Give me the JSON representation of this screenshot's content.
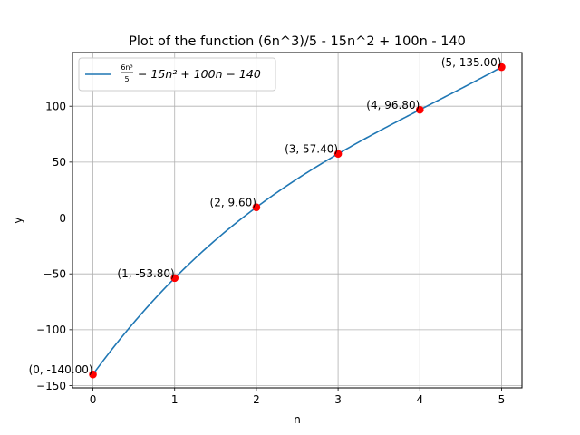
{
  "chart_data": {
    "type": "line",
    "title": "Plot of the function (6n^3)/5 - 15n^2 + 100n - 140",
    "xlabel": "n",
    "ylabel": "y",
    "xlim": [
      -0.25,
      5.25
    ],
    "ylim": [
      -152,
      148
    ],
    "xticks": [
      0,
      1,
      2,
      3,
      4,
      5
    ],
    "yticks": [
      -150,
      -100,
      -50,
      0,
      50,
      100
    ],
    "grid": true,
    "legend_position": "top-left",
    "function": {
      "a3": 1.2,
      "a2": -15,
      "a1": 100,
      "a0": -140,
      "x_range": [
        0,
        5
      ]
    },
    "series": [
      {
        "name_parts": [
          "6n³",
          "5",
          "− 15n² + 100n − 140"
        ],
        "color": "#1f77b4"
      }
    ],
    "points": {
      "x": [
        0,
        1,
        2,
        3,
        4,
        5
      ],
      "y": [
        -140,
        -53.8,
        9.6,
        57.4,
        96.8,
        135
      ],
      "color": "#ff0000",
      "labels": [
        "(0, -140.00)",
        "(1, -53.80)",
        "(2, 9.60)",
        "(3, 57.40)",
        "(4, 96.80)",
        "(5, 135.00)"
      ]
    }
  }
}
